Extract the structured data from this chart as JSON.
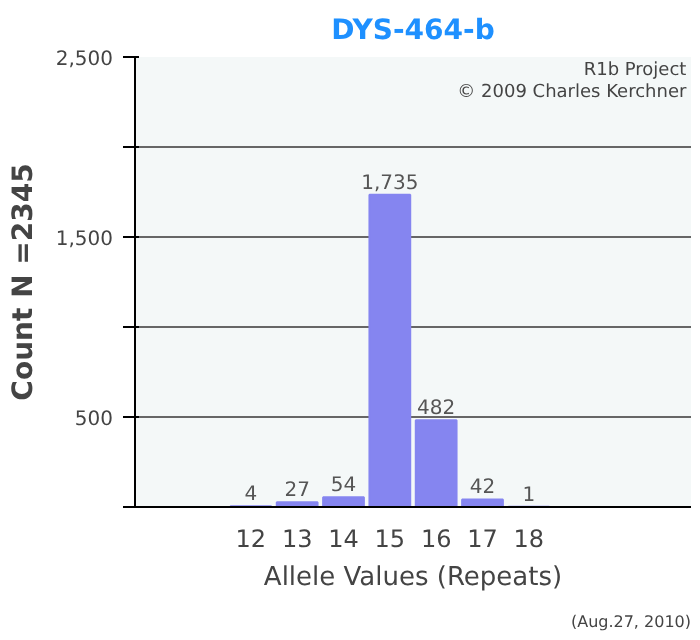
{
  "chart_data": {
    "type": "bar",
    "title": "DYS-464-b",
    "xlabel": "Allele Values (Repeats)",
    "ylabel": "Count N =2345",
    "categories": [
      null,
      null,
      "12",
      "13",
      "14",
      "15",
      "16",
      "17",
      "18",
      null,
      null,
      null
    ],
    "values": [
      null,
      null,
      4,
      27,
      54,
      1735,
      482,
      42,
      1,
      null,
      null,
      null
    ],
    "value_labels": [
      null,
      null,
      "4",
      "27",
      "54",
      "1,735",
      "482",
      "42",
      "1",
      null,
      null,
      null
    ],
    "color": "#8585f0",
    "ylim": [
      0,
      2500
    ],
    "yticks": [
      {
        "value": 0,
        "label": null
      },
      500,
      {
        "value": 1000,
        "label": null
      },
      {
        "value": 1500,
        "label": "1,500"
      },
      {
        "value": 2000,
        "label": null
      },
      {
        "value": 2500,
        "label": "2,500"
      }
    ],
    "grid": "y",
    "annotations": [
      "R1b Project",
      "© 2009 Charles Kerchner",
      "(Aug.27, 2010)"
    ]
  }
}
